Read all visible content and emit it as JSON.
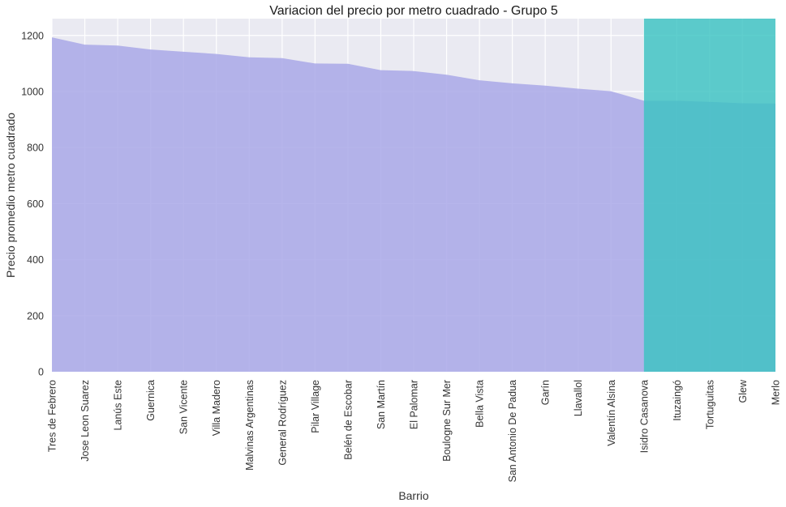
{
  "chart_data": {
    "type": "area",
    "title": "Variacion del precio por metro cuadrado - Grupo 5",
    "xlabel": "Barrio",
    "ylabel": "Precio promedio metro cuadrado",
    "ylim": [
      0,
      1260
    ],
    "yticks": [
      0,
      200,
      400,
      600,
      800,
      1000,
      1200
    ],
    "grid": true,
    "categories": [
      "Tres de Febrero",
      "Jose Leon Suarez",
      "Lanús Este",
      "Guernica",
      "San Vicente",
      "Villa Madero",
      "Malvinas Argentinas",
      "General Rodríguez",
      "Pilar Village",
      "Belén de Escobar",
      "San Martín",
      "El Palomar",
      "Boulogne Sur Mer",
      "Bella Vista",
      "San Antonio De Padua",
      "Garín",
      "Llavallol",
      "Valentín Alsina",
      "Isidro Casanova",
      "Ituzaingó",
      "Tortuguitas",
      "Glew",
      "Merlo"
    ],
    "series": [
      {
        "color": "#a9a8e8",
        "values": [
          1193,
          1167,
          1164,
          1150,
          1142,
          1134,
          1122,
          1119,
          1100,
          1099,
          1076,
          1073,
          1060,
          1040,
          1029,
          1021,
          1010,
          1001,
          967,
          967,
          963,
          958,
          957
        ]
      }
    ],
    "highlight": {
      "from_category": "Isidro Casanova",
      "to_category": "Merlo",
      "color": "#3cc3c2"
    }
  }
}
